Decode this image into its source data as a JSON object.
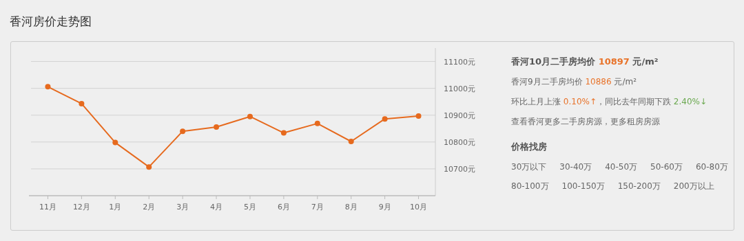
{
  "chart_data": {
    "type": "line",
    "title": "香河房价走势图",
    "categories": [
      "11月",
      "12月",
      "1月",
      "2月",
      "3月",
      "4月",
      "5月",
      "6月",
      "7月",
      "8月",
      "9月",
      "10月"
    ],
    "series": [
      {
        "color": "#e66a1e",
        "values": [
          11006,
          10943,
          10798,
          10707,
          10840,
          10856,
          10895,
          10834,
          10869,
          10802,
          10886,
          10897
        ]
      }
    ],
    "ylim": [
      10600,
      11150
    ],
    "yticks": [
      {
        "value": 10700,
        "label": "10700元"
      },
      {
        "value": 10800,
        "label": "10800元"
      },
      {
        "value": 10900,
        "label": "10900元"
      },
      {
        "value": 11000,
        "label": "11000元"
      },
      {
        "value": 11100,
        "label": "11100元"
      }
    ],
    "grid": "y",
    "marker": "circle",
    "line_style": "solid",
    "annotations": [
      "香河10月二手房均价 10897 元/m²",
      "香河9月二手房均价 10886 元/m²",
      "环比上月上涨 0.10%↑，同比去年同期下跌 2.40%↓",
      "查看香河更多二手房房源，更多租房房源",
      "价格找房",
      "30万以下",
      "30-40万",
      "40-50万",
      "50-60万",
      "60-80万",
      "80-100万",
      "100-150万",
      "150-200万",
      "200万以上"
    ]
  }
}
